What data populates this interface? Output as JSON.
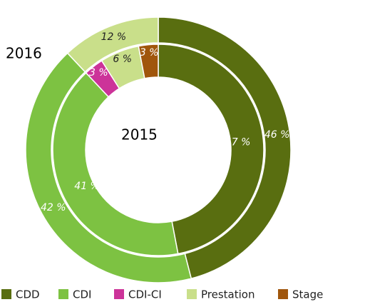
{
  "chart_data": {
    "type": "donut",
    "categories": [
      "CDD",
      "CDI",
      "CDI-CI",
      "Prestation",
      "Stage"
    ],
    "colors": [
      "#596e10",
      "#7dc242",
      "#cc3399",
      "#c9df8a",
      "#a0560c"
    ],
    "series": [
      {
        "name": "2016",
        "values": [
          46,
          42,
          null,
          12,
          null
        ],
        "value_labels": [
          "46 %",
          "42 %",
          null,
          "12 %",
          null
        ]
      },
      {
        "name": "2015",
        "values": [
          47,
          41,
          3,
          6,
          3
        ],
        "value_labels": [
          "47 %",
          "41 %",
          "3 %",
          "6 %",
          "3 %"
        ]
      }
    ]
  }
}
